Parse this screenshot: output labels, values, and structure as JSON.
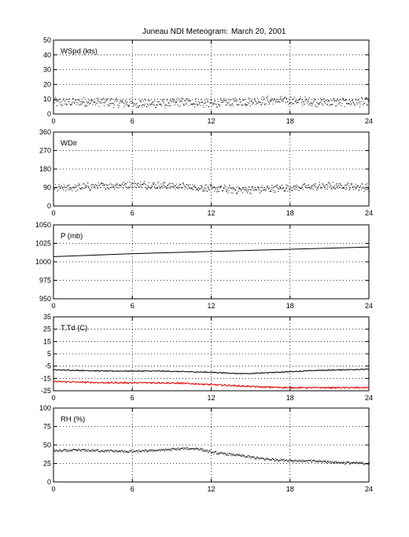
{
  "figure": {
    "title": "Juneau NDI Meteogram:",
    "date": "March 20, 2001"
  },
  "chart_data": [
    {
      "type": "scatter",
      "label": "WSpd (kts)",
      "xlim": [
        0,
        24
      ],
      "ylim": [
        0,
        50
      ],
      "xticks": [
        0,
        6,
        12,
        18,
        24
      ],
      "yticks": [
        0,
        10,
        20,
        30,
        40,
        50
      ],
      "grid": true,
      "series": [
        {
          "color": "#000000",
          "x": [
            0,
            2,
            4,
            6,
            8,
            10,
            12,
            14,
            16,
            18,
            20,
            22,
            24
          ],
          "values": [
            8,
            8,
            8,
            7,
            7,
            8,
            7,
            8,
            9,
            9,
            8,
            8,
            8
          ],
          "spread": 2.6
        }
      ]
    },
    {
      "type": "scatter",
      "label": "WDir",
      "xlim": [
        0,
        24
      ],
      "ylim": [
        0,
        360
      ],
      "xticks": [
        0,
        6,
        12,
        18,
        24
      ],
      "yticks": [
        0,
        90,
        180,
        270,
        360
      ],
      "grid": true,
      "series": [
        {
          "color": "#000000",
          "x": [
            0,
            2,
            4,
            6,
            8,
            10,
            12,
            14,
            16,
            18,
            20,
            22,
            24
          ],
          "values": [
            85,
            92,
            98,
            105,
            100,
            95,
            85,
            78,
            82,
            88,
            95,
            98,
            90
          ],
          "spread": 16
        }
      ]
    },
    {
      "type": "line",
      "label": "P (mb)",
      "xlim": [
        0,
        24
      ],
      "ylim": [
        950,
        1050
      ],
      "xticks": [
        0,
        6,
        12,
        18,
        24
      ],
      "yticks": [
        950,
        975,
        1000,
        1025,
        1050
      ],
      "grid": true,
      "series": [
        {
          "color": "#000000",
          "x": [
            0,
            6,
            12,
            18,
            24
          ],
          "values": [
            1007,
            1011,
            1014,
            1017,
            1020
          ],
          "spread": 0
        }
      ]
    },
    {
      "type": "line",
      "label": "T,Td (C)",
      "xlim": [
        0,
        24
      ],
      "ylim": [
        -25,
        35
      ],
      "xticks": [
        0,
        6,
        12,
        18,
        24
      ],
      "yticks": [
        -25,
        -15,
        -5,
        5,
        15,
        25,
        35
      ],
      "grid": true,
      "series": [
        {
          "color": "#000000",
          "x": [
            0,
            2,
            4,
            6,
            8,
            10,
            12,
            14,
            15,
            16,
            18,
            20,
            22,
            24
          ],
          "values": [
            -8,
            -8.5,
            -9,
            -9,
            -9,
            -9.5,
            -10,
            -11,
            -11,
            -10.5,
            -9.5,
            -8.5,
            -8,
            -7.5
          ],
          "spread": 0.3
        },
        {
          "color": "#e00000",
          "x": [
            0,
            2,
            4,
            6,
            8,
            10,
            12,
            14,
            16,
            18,
            20,
            22,
            24
          ],
          "values": [
            -17.5,
            -18,
            -18.5,
            -18.5,
            -18.5,
            -19,
            -20,
            -21,
            -22,
            -22.5,
            -22.5,
            -22.5,
            -22.5
          ],
          "spread": 0.5
        }
      ]
    },
    {
      "type": "scatter",
      "label": "RH (%)",
      "xlim": [
        0,
        24
      ],
      "ylim": [
        0,
        100
      ],
      "xticks": [
        0,
        6,
        12,
        18,
        24
      ],
      "yticks": [
        0,
        25,
        50,
        75,
        100
      ],
      "grid": true,
      "series": [
        {
          "color": "#000000",
          "x": [
            0,
            2,
            4,
            6,
            8,
            10,
            11,
            12,
            14,
            16,
            18,
            20,
            22,
            24
          ],
          "values": [
            42,
            43,
            42,
            41,
            43,
            45,
            45,
            40,
            36,
            31,
            29,
            28,
            26,
            25
          ],
          "spread": 1.5
        }
      ]
    }
  ]
}
